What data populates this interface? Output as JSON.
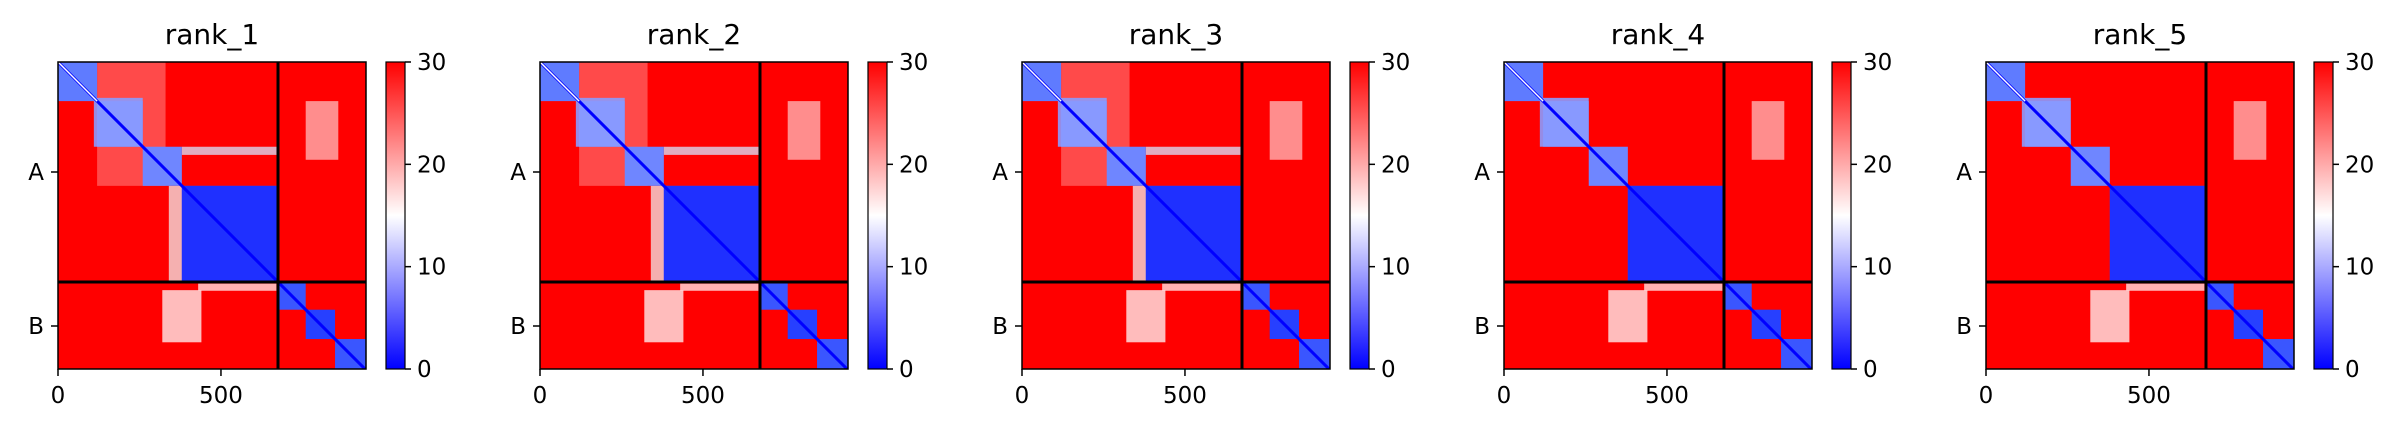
{
  "chart_data": [
    {
      "type": "heatmap",
      "title": "rank_1",
      "xlabel": "",
      "ylabel": "",
      "xlim": [
        0,
        945
      ],
      "x_ticks": [
        0,
        500
      ],
      "chain_labels": [
        "A",
        "B"
      ],
      "chain_boundary": 675,
      "colorbar": {
        "range": [
          0,
          30
        ],
        "ticks": [
          0,
          10,
          20,
          30
        ],
        "colors": [
          "#0000ff",
          "#ffffff",
          "#ff0000"
        ]
      },
      "low_error_blocks": [
        [
          0,
          120
        ],
        [
          120,
          260
        ],
        [
          260,
          380
        ],
        [
          380,
          675
        ],
        [
          675,
          760
        ],
        [
          760,
          850
        ],
        [
          850,
          945
        ]
      ],
      "domain_a_low": true
    },
    {
      "type": "heatmap",
      "title": "rank_2",
      "xlabel": "",
      "ylabel": "",
      "xlim": [
        0,
        945
      ],
      "x_ticks": [
        0,
        500
      ],
      "chain_labels": [
        "A",
        "B"
      ],
      "chain_boundary": 675,
      "colorbar": {
        "range": [
          0,
          30
        ],
        "ticks": [
          0,
          10,
          20,
          30
        ],
        "colors": [
          "#0000ff",
          "#ffffff",
          "#ff0000"
        ]
      },
      "low_error_blocks": [
        [
          0,
          120
        ],
        [
          120,
          260
        ],
        [
          260,
          380
        ],
        [
          380,
          675
        ],
        [
          675,
          760
        ],
        [
          760,
          850
        ],
        [
          850,
          945
        ]
      ],
      "domain_a_low": true
    },
    {
      "type": "heatmap",
      "title": "rank_3",
      "xlabel": "",
      "ylabel": "",
      "xlim": [
        0,
        945
      ],
      "x_ticks": [
        0,
        500
      ],
      "chain_labels": [
        "A",
        "B"
      ],
      "chain_boundary": 675,
      "colorbar": {
        "range": [
          0,
          30
        ],
        "ticks": [
          0,
          10,
          20,
          30
        ],
        "colors": [
          "#0000ff",
          "#ffffff",
          "#ff0000"
        ]
      },
      "low_error_blocks": [
        [
          0,
          120
        ],
        [
          120,
          260
        ],
        [
          260,
          380
        ],
        [
          380,
          675
        ],
        [
          675,
          760
        ],
        [
          760,
          850
        ],
        [
          850,
          945
        ]
      ],
      "domain_a_low": true
    },
    {
      "type": "heatmap",
      "title": "rank_4",
      "xlabel": "",
      "ylabel": "",
      "xlim": [
        0,
        945
      ],
      "x_ticks": [
        0,
        500
      ],
      "chain_labels": [
        "A",
        "B"
      ],
      "chain_boundary": 675,
      "colorbar": {
        "range": [
          0,
          30
        ],
        "ticks": [
          0,
          10,
          20,
          30
        ],
        "colors": [
          "#0000ff",
          "#ffffff",
          "#ff0000"
        ]
      },
      "low_error_blocks": [
        [
          0,
          120
        ],
        [
          120,
          260
        ],
        [
          260,
          380
        ],
        [
          380,
          675
        ],
        [
          675,
          760
        ],
        [
          760,
          850
        ],
        [
          850,
          945
        ]
      ],
      "domain_a_low": false
    },
    {
      "type": "heatmap",
      "title": "rank_5",
      "xlabel": "",
      "ylabel": "",
      "xlim": [
        0,
        945
      ],
      "x_ticks": [
        0,
        500
      ],
      "chain_labels": [
        "A",
        "B"
      ],
      "chain_boundary": 675,
      "colorbar": {
        "range": [
          0,
          30
        ],
        "ticks": [
          0,
          10,
          20,
          30
        ],
        "colors": [
          "#0000ff",
          "#ffffff",
          "#ff0000"
        ]
      },
      "low_error_blocks": [
        [
          0,
          120
        ],
        [
          120,
          260
        ],
        [
          260,
          380
        ],
        [
          380,
          675
        ],
        [
          675,
          760
        ],
        [
          760,
          850
        ],
        [
          850,
          945
        ]
      ],
      "domain_a_low": false
    }
  ]
}
